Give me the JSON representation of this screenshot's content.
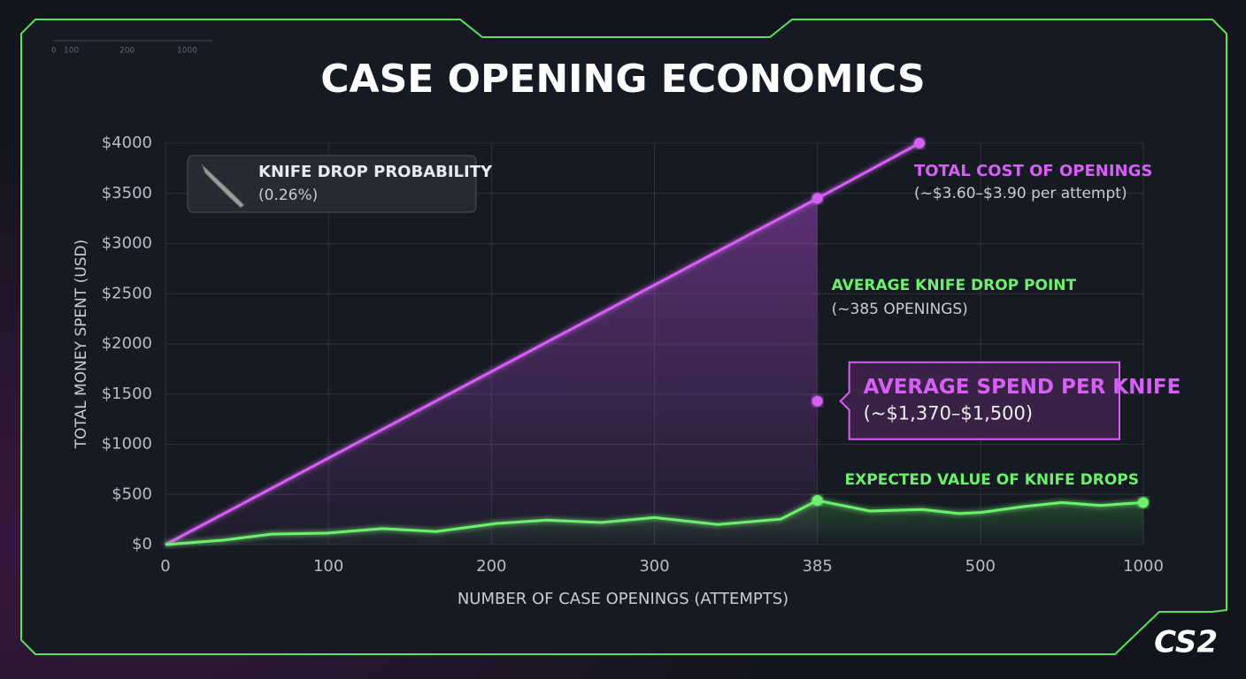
{
  "chart_data": {
    "type": "line",
    "title": "CASE OPENING ECONOMICS",
    "x_label": "NUMBER OF CASE OPENINGS (ATTEMPTS)",
    "y_label": "TOTAL MONEY SPENT (USD)",
    "xticks": [
      0,
      100,
      200,
      300,
      385,
      500,
      1000
    ],
    "xlim": [
      0,
      1000
    ],
    "ylim": [
      0,
      4000
    ],
    "yticks": [
      {
        "value": 0,
        "label": "$0"
      },
      {
        "value": 500,
        "label": "$500"
      },
      {
        "value": 1000,
        "label": "$1000"
      },
      {
        "value": 1500,
        "label": "$1500"
      },
      {
        "value": 2000,
        "label": "$2000"
      },
      {
        "value": 2500,
        "label": "$2500"
      },
      {
        "value": 3000,
        "label": "$3000"
      },
      {
        "value": 3500,
        "label": "$3500"
      },
      {
        "value": 4000,
        "label": "$4000"
      }
    ],
    "grid": true,
    "series": [
      {
        "name": "TOTAL COST OF OPENINGS",
        "note": "(~$3.60–$3.90 per attempt)",
        "color": "#d660f5",
        "x": [
          0,
          385,
          457
        ],
        "values": [
          0,
          3450,
          4000
        ]
      },
      {
        "name": "EXPECTED VALUE OF KNIFE DROPS",
        "color": "#6df06d",
        "x": [
          0,
          36,
          65,
          99,
          133,
          166,
          203,
          234,
          267,
          300,
          333,
          366,
          385,
          422,
          459,
          485,
          500,
          634,
          751,
          868,
          1000
        ],
        "values": [
          0,
          45,
          105,
          115,
          160,
          130,
          210,
          245,
          220,
          270,
          200,
          255,
          440,
          335,
          350,
          310,
          320,
          380,
          420,
          390,
          420
        ]
      }
    ],
    "knife_drop": {
      "x": 385,
      "label": "AVERAGE KNIFE DROP POINT",
      "note": "(~385 OPENINGS)",
      "color": "#6df06d"
    },
    "avg_spend": {
      "x": 385,
      "value": 1430,
      "label": "AVERAGE SPEND PER KNIFE",
      "note": "(~$1,370–$1,500)",
      "color": "#d660f5"
    },
    "probability_box": {
      "label": "KNIFE DROP PROBABILITY",
      "note": "(0.26%)"
    }
  },
  "header_scale": [
    "0",
    "100",
    "200",
    "1000"
  ],
  "logo": "CS2"
}
